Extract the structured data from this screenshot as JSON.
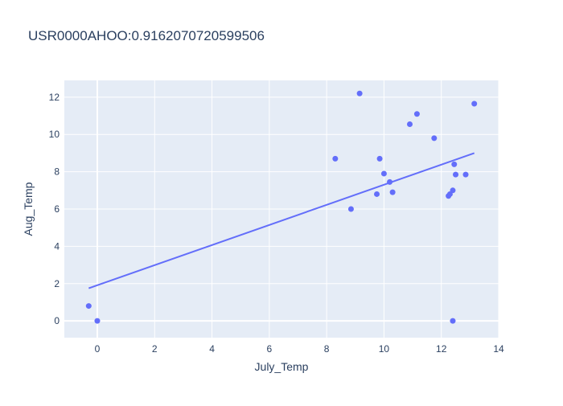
{
  "chart_data": {
    "type": "scatter",
    "title": "USR0000AHOO:0.9162070720599506",
    "xlabel": "July_Temp",
    "ylabel": "Aug_Temp",
    "xlim": [
      -1.15,
      14
    ],
    "ylim": [
      -0.9,
      12.9
    ],
    "xticks": [
      0,
      2,
      4,
      6,
      8,
      10,
      12,
      14
    ],
    "yticks": [
      0,
      2,
      4,
      6,
      8,
      10,
      12
    ],
    "grid": true,
    "legend": "none",
    "colors": {
      "plot_bg": "#e5ecf6",
      "grid": "#ffffff",
      "marker": "#636efa",
      "line": "#636efa",
      "text": "#2a3f5f"
    },
    "series": [
      {
        "mode": "markers",
        "x": [
          -0.3,
          0.0,
          8.3,
          8.85,
          9.15,
          9.75,
          9.85,
          10.0,
          10.2,
          10.3,
          10.9,
          11.15,
          11.75,
          12.25,
          12.3,
          12.4,
          12.4,
          12.45,
          12.5,
          12.85,
          13.15
        ],
        "y": [
          0.8,
          0.0,
          8.7,
          6.0,
          12.2,
          6.8,
          8.7,
          7.9,
          7.45,
          6.9,
          10.55,
          11.1,
          9.8,
          6.7,
          6.8,
          7.0,
          0.0,
          8.4,
          7.85,
          7.85,
          11.65
        ]
      },
      {
        "mode": "lines",
        "x": [
          -0.3,
          13.15
        ],
        "y": [
          1.75,
          9.0
        ]
      }
    ]
  }
}
